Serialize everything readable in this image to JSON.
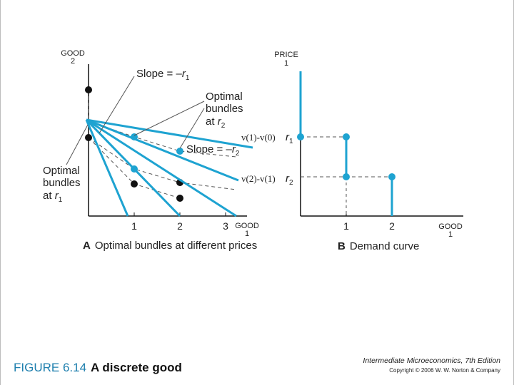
{
  "panel_a": {
    "y_axis_label_line1": "GOOD",
    "y_axis_label_line2": "2",
    "x_axis_label_line1": "GOOD",
    "x_axis_label_line2": "1",
    "x_ticks": [
      "1",
      "2",
      "3"
    ],
    "slope_r1_prefix": "Slope = –",
    "slope_r1_var": "r",
    "slope_r1_sub": "1",
    "slope_r2_prefix": "Slope = –",
    "slope_r2_var": "r",
    "slope_r2_sub": "2",
    "optimal_r2_line1": "Optimal",
    "optimal_r2_line2": "bundles",
    "optimal_r2_line3": "at",
    "optimal_r2_var": "r",
    "optimal_r2_sub": "2",
    "optimal_r1_line1": "Optimal",
    "optimal_r1_line2": "bundles",
    "optimal_r1_line3": "at",
    "optimal_r1_var": "r",
    "optimal_r1_sub": "1",
    "caption_letter": "A",
    "caption_text": "Optimal bundles at different prices"
  },
  "panel_b": {
    "y_axis_label_line1": "PRICE",
    "y_axis_label_line2": "1",
    "x_axis_label_line1": "GOOD",
    "x_axis_label_line2": "1",
    "x_ticks": [
      "1",
      "2"
    ],
    "r1_var": "r",
    "r1_sub": "1",
    "r2_var": "r",
    "r2_sub": "2",
    "v1_label": "v(1)-v(0)",
    "v2_label": "v(2)-v(1)",
    "caption_letter": "B",
    "caption_text": "Demand curve"
  },
  "footer": {
    "figure_number": "FIGURE 6.14",
    "figure_title": "A discrete good",
    "book_title": "Intermediate Microeconomics, 7th Edition",
    "copyright": "Copyright © 2006 W. W. Norton & Company"
  },
  "colors": {
    "accent": "#1ea3d1",
    "ink": "#111111",
    "dash": "#555555"
  }
}
